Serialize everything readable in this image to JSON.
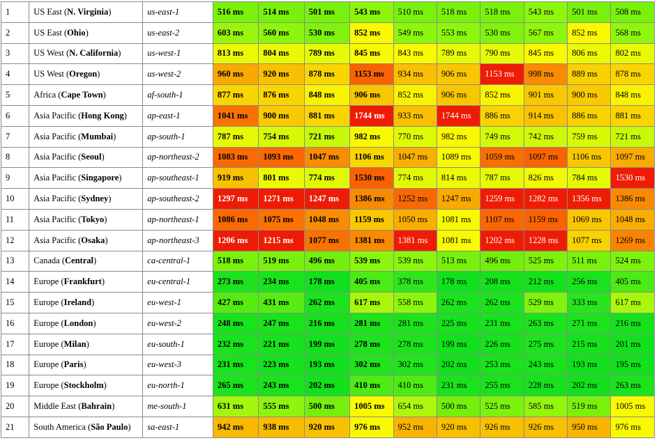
{
  "rows": [
    {
      "num": "1",
      "region": "US East",
      "loc": "N. Virginia",
      "code": "us-east-1",
      "lat": [
        "516 ms",
        "514 ms",
        "501 ms",
        "543 ms",
        "510 ms",
        "518 ms",
        "518 ms",
        "543 ms",
        "501 ms",
        "508 ms"
      ],
      "col": [
        "#79f10d",
        "#79f10d",
        "#78f10d",
        "#8cf60d",
        "#79f10d",
        "#7af10d",
        "#7af10d",
        "#8cf60d",
        "#78f10d",
        "#79f10d"
      ]
    },
    {
      "num": "2",
      "region": "US East",
      "loc": "Ohio",
      "code": "us-east-2",
      "lat": [
        "603 ms",
        "560 ms",
        "530 ms",
        "852 ms",
        "549 ms",
        "553 ms",
        "530 ms",
        "567 ms",
        "852 ms",
        "568 ms"
      ],
      "col": [
        "#98f60d",
        "#8df60d",
        "#7ff30d",
        "#f9f902",
        "#8df60d",
        "#8df60d",
        "#7ff30d",
        "#8ff60d",
        "#f9f902",
        "#8ff60d"
      ]
    },
    {
      "num": "3",
      "region": "US West",
      "loc": "N. California",
      "code": "us-west-1",
      "lat": [
        "813 ms",
        "804 ms",
        "789 ms",
        "845 ms",
        "843 ms",
        "789 ms",
        "790 ms",
        "845 ms",
        "806 ms",
        "802 ms"
      ],
      "col": [
        "#ecf905",
        "#eafa05",
        "#e6fa05",
        "#f9f902",
        "#f9f902",
        "#e6fa05",
        "#e6fa05",
        "#f9f902",
        "#ecf905",
        "#eafa05"
      ]
    },
    {
      "num": "4",
      "region": "US West",
      "loc": "Oregon",
      "code": "us-west-2",
      "lat": [
        "960 ms",
        "920 ms",
        "878 ms",
        "1153 ms",
        "934 ms",
        "906 ms",
        "1153 ms",
        "998 ms",
        "889 ms",
        "878 ms"
      ],
      "col": [
        "#f9a902",
        "#f9c002",
        "#f9d602",
        "#f96202",
        "#f9bf02",
        "#f9c702",
        "#ef1c05",
        "#f98a02",
        "#f9d002",
        "#f9d602"
      ]
    },
    {
      "num": "5",
      "region": "Africa",
      "loc": "Cape Town",
      "code": "af-south-1",
      "lat": [
        "877 ms",
        "876 ms",
        "848 ms",
        "906 ms",
        "852 ms",
        "906 ms",
        "852 ms",
        "901 ms",
        "900 ms",
        "848 ms"
      ],
      "col": [
        "#f9d602",
        "#f9d602",
        "#f9f302",
        "#f9c702",
        "#f9f302",
        "#f9c702",
        "#f9f302",
        "#f9c802",
        "#f9c902",
        "#f9f302"
      ]
    },
    {
      "num": "6",
      "region": "Asia Pacific",
      "loc": "Hong Kong",
      "code": "ap-east-1",
      "lat": [
        "1041 ms",
        "900 ms",
        "881 ms",
        "1744 ms",
        "933 ms",
        "1744 ms",
        "886 ms",
        "914 ms",
        "886 ms",
        "881 ms"
      ],
      "col": [
        "#f97202",
        "#f9c902",
        "#f9d602",
        "#ef1c05",
        "#f9bf02",
        "#ef1c05",
        "#f9d202",
        "#f9c302",
        "#f9d202",
        "#f9d602"
      ]
    },
    {
      "num": "7",
      "region": "Asia Pacific",
      "loc": "Mumbai",
      "code": "ap-south-1",
      "lat": [
        "787 ms",
        "754 ms",
        "721 ms",
        "982 ms",
        "770 ms",
        "982 ms",
        "749 ms",
        "742 ms",
        "759 ms",
        "721 ms"
      ],
      "col": [
        "#e6fa05",
        "#d6f907",
        "#c7f909",
        "#f9f902",
        "#defa05",
        "#f9f902",
        "#d2f907",
        "#cff909",
        "#d8f907",
        "#c7f909"
      ]
    },
    {
      "num": "8",
      "region": "Asia Pacific",
      "loc": "Seoul",
      "code": "ap-northeast-2",
      "lat": [
        "1083 ms",
        "1093 ms",
        "1047 ms",
        "1106 ms",
        "1047 ms",
        "1089 ms",
        "1059 ms",
        "1097 ms",
        "1106 ms",
        "1097 ms"
      ],
      "col": [
        "#f96b02",
        "#f96802",
        "#f98c02",
        "#f9d602",
        "#f9ae02",
        "#f9f902",
        "#f96f02",
        "#f96302",
        "#f9c702",
        "#f9ac02"
      ]
    },
    {
      "num": "9",
      "region": "Asia Pacific",
      "loc": "Singapore",
      "code": "ap-southeast-1",
      "lat": [
        "919 ms",
        "801 ms",
        "774 ms",
        "1530 ms",
        "774 ms",
        "814 ms",
        "787 ms",
        "826 ms",
        "784 ms",
        "1530 ms"
      ],
      "col": [
        "#f9c102",
        "#eafa05",
        "#e0fa05",
        "#f96202",
        "#e0fa05",
        "#eef905",
        "#e6fa05",
        "#f2f905",
        "#e4fa05",
        "#ef1c05"
      ]
    },
    {
      "num": "10",
      "region": "Asia Pacific",
      "loc": "Sydney",
      "code": "ap-southeast-2",
      "lat": [
        "1297 ms",
        "1271 ms",
        "1247 ms",
        "1386 ms",
        "1252 ms",
        "1247 ms",
        "1259 ms",
        "1282 ms",
        "1356 ms",
        "1386 ms"
      ],
      "col": [
        "#ef1c05",
        "#ef1c05",
        "#ef1c05",
        "#f98a02",
        "#f96802",
        "#f9a902",
        "#ef1c05",
        "#ef1c05",
        "#ef1c05",
        "#f98a02"
      ]
    },
    {
      "num": "11",
      "region": "Asia Pacific",
      "loc": "Tokyo",
      "code": "ap-northeast-1",
      "lat": [
        "1086 ms",
        "1075 ms",
        "1048 ms",
        "1159 ms",
        "1050 ms",
        "1081 ms",
        "1107 ms",
        "1159 ms",
        "1069 ms",
        "1048 ms"
      ],
      "col": [
        "#f96a02",
        "#f97202",
        "#f98c02",
        "#f9c702",
        "#f9ae02",
        "#f9f902",
        "#f96602",
        "#f96202",
        "#f9c702",
        "#f9ac02"
      ]
    },
    {
      "num": "12",
      "region": "Asia Pacific",
      "loc": "Osaka",
      "code": "ap-northeast-3",
      "lat": [
        "1206 ms",
        "1215 ms",
        "1077 ms",
        "1381 ms",
        "1381 ms",
        "1081 ms",
        "1202 ms",
        "1228 ms",
        "1077 ms",
        "1269 ms"
      ],
      "col": [
        "#ef1c05",
        "#ef1c05",
        "#f97102",
        "#f98a02",
        "#ef1c05",
        "#f9f902",
        "#ef1c05",
        "#ef1c05",
        "#f9d202",
        "#f98402"
      ]
    },
    {
      "num": "13",
      "region": "Canada",
      "loc": "Central",
      "code": "ca-central-1",
      "lat": [
        "518 ms",
        "519 ms",
        "496 ms",
        "539 ms",
        "539 ms",
        "513 ms",
        "496 ms",
        "525 ms",
        "511 ms",
        "524 ms"
      ],
      "col": [
        "#7af10d",
        "#7af10d",
        "#71ef0d",
        "#89f60d",
        "#89f60d",
        "#79f10d",
        "#71ef0d",
        "#7cf20d",
        "#79f10d",
        "#7cf20d"
      ]
    },
    {
      "num": "14",
      "region": "Europe",
      "loc": "Frankfurt",
      "code": "eu-central-1",
      "lat": [
        "273 ms",
        "234 ms",
        "178 ms",
        "405 ms",
        "378 ms",
        "178 ms",
        "208 ms",
        "212 ms",
        "256 ms",
        "405 ms"
      ],
      "col": [
        "#1ce31d",
        "#18e31d",
        "#10e01d",
        "#4ceb15",
        "#2fe61d",
        "#10e01d",
        "#14e21d",
        "#14e21d",
        "#1ae31d",
        "#4ceb15"
      ]
    },
    {
      "num": "15",
      "region": "Europe",
      "loc": "Ireland",
      "code": "eu-west-1",
      "lat": [
        "427 ms",
        "431 ms",
        "262 ms",
        "617 ms",
        "558 ms",
        "262 ms",
        "262 ms",
        "529 ms",
        "333 ms",
        "617 ms"
      ],
      "col": [
        "#55ec12",
        "#56ec12",
        "#1be31d",
        "#a8f70c",
        "#8df60d",
        "#1be31d",
        "#1be31d",
        "#7ff30d",
        "#28e51d",
        "#a8f70c"
      ]
    },
    {
      "num": "16",
      "region": "Europe",
      "loc": "London",
      "code": "eu-west-2",
      "lat": [
        "248 ms",
        "247 ms",
        "216 ms",
        "281 ms",
        "281 ms",
        "225 ms",
        "231 ms",
        "263 ms",
        "271 ms",
        "216 ms"
      ],
      "col": [
        "#19e31d",
        "#19e31d",
        "#15e21d",
        "#1de31d",
        "#1de31d",
        "#16e21d",
        "#18e31d",
        "#1be31d",
        "#1ce31d",
        "#15e21d"
      ]
    },
    {
      "num": "17",
      "region": "Europe",
      "loc": "Milan",
      "code": "eu-south-1",
      "lat": [
        "232 ms",
        "221 ms",
        "199 ms",
        "278 ms",
        "278 ms",
        "199 ms",
        "226 ms",
        "275 ms",
        "215 ms",
        "201 ms"
      ],
      "col": [
        "#18e31d",
        "#16e21d",
        "#13e11d",
        "#1de31d",
        "#1de31d",
        "#13e11d",
        "#17e21d",
        "#1ce31d",
        "#15e21d",
        "#13e11d"
      ]
    },
    {
      "num": "18",
      "region": "Europe",
      "loc": "Paris",
      "code": "eu-west-3",
      "lat": [
        "231 ms",
        "223 ms",
        "193 ms",
        "302 ms",
        "302 ms",
        "202 ms",
        "253 ms",
        "243 ms",
        "193 ms",
        "195 ms"
      ],
      "col": [
        "#18e31d",
        "#16e21d",
        "#12e11d",
        "#22e41d",
        "#22e41d",
        "#13e11d",
        "#1ae31d",
        "#19e31d",
        "#12e11d",
        "#12e11d"
      ]
    },
    {
      "num": "19",
      "region": "Europe",
      "loc": "Stockholm",
      "code": "eu-north-1",
      "lat": [
        "265 ms",
        "243 ms",
        "202 ms",
        "410 ms",
        "410 ms",
        "231 ms",
        "255 ms",
        "228 ms",
        "202 ms",
        "263 ms"
      ],
      "col": [
        "#1be31d",
        "#19e31d",
        "#13e11d",
        "#4eeb14",
        "#4eeb14",
        "#18e31d",
        "#1ae31d",
        "#17e21d",
        "#13e11d",
        "#1be31d"
      ]
    },
    {
      "num": "20",
      "region": "Middle East",
      "loc": "Bahrain",
      "code": "me-south-1",
      "lat": [
        "631 ms",
        "555 ms",
        "500 ms",
        "1005 ms",
        "654 ms",
        "500 ms",
        "525 ms",
        "585 ms",
        "519 ms",
        "1005 ms"
      ],
      "col": [
        "#a3f70c",
        "#8df60d",
        "#75f00d",
        "#f9f902",
        "#acf80c",
        "#75f00d",
        "#7cf20d",
        "#93f60d",
        "#7af10d",
        "#f9f902"
      ]
    },
    {
      "num": "21",
      "region": "South America",
      "loc": "São Paulo",
      "code": "sa-east-1",
      "lat": [
        "942 ms",
        "938 ms",
        "920 ms",
        "976 ms",
        "952 ms",
        "920 ms",
        "926 ms",
        "926 ms",
        "950 ms",
        "976 ms"
      ],
      "col": [
        "#f9b902",
        "#f9bc02",
        "#f9c002",
        "#f9f902",
        "#f9b302",
        "#f9c002",
        "#f9bf02",
        "#f9bf02",
        "#f9b502",
        "#f9f902"
      ]
    }
  ]
}
